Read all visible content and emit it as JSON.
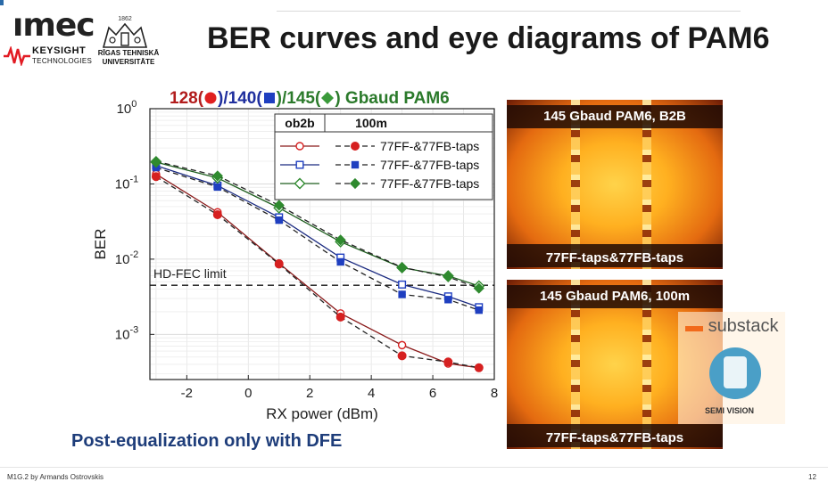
{
  "slide": {
    "title": "BER curves and eye diagrams of PAM6",
    "footer_left": "M1G.2 by Armands Ostrovskis",
    "page_number": "12",
    "subtitle_bottom": "Post-equalization only with DFE"
  },
  "logos": {
    "imec": "ımec",
    "keysight_line1": "KEYSIGHT",
    "keysight_line2": "TECHNOLOGIES",
    "rtu_year": "1862",
    "rtu_line1": "RĪGAS TEHNISKĀ",
    "rtu_line2": "UNIVERSITĀTE"
  },
  "chart_title": {
    "part1": "128(",
    "part2": ")/140(",
    "part3": ")/145(",
    "part4": ") Gbaud PAM6"
  },
  "eyes": [
    {
      "top_label": "145 Gbaud PAM6, B2B",
      "bottom_label": "77FF-taps&77FB-taps"
    },
    {
      "top_label": "145 Gbaud PAM6, 100m",
      "bottom_label": "77FF-taps&77FB-taps"
    }
  ],
  "watermark": {
    "substack": "substack",
    "semi_vision": "SEMI VISION"
  },
  "colors": {
    "red": "#d62020",
    "blue": "#1f3fc0",
    "green": "#2f8a2f",
    "dark_red": "#8a1a1a",
    "dark_blue": "#1a2a80",
    "dark_green": "#1e5e1e"
  },
  "chart_data": {
    "type": "line",
    "xlabel": "RX power (dBm)",
    "ylabel": "BER",
    "xlim": [
      -3.2,
      8
    ],
    "ylim_log10": [
      -3.6,
      0
    ],
    "y_scale": "log",
    "x_ticks": [
      -2,
      0,
      2,
      4,
      6,
      8
    ],
    "x_tick_labels": [
      "-2",
      "0",
      "2",
      "4",
      "6",
      "8"
    ],
    "y_ticks_log10": [
      0,
      -1,
      -2,
      -3
    ],
    "y_tick_base": "10",
    "y_tick_exps": [
      "0",
      "-1",
      "-2",
      "-3"
    ],
    "grid": true,
    "legend_position": "top-right",
    "legend_headers": [
      "ob2b",
      "100m"
    ],
    "legend_labels": [
      "77FF-&77FB-taps",
      "77FF-&77FB-taps",
      "77FF-&77FB-taps"
    ],
    "hd_fec": {
      "label": "HD-FEC limit",
      "value": 0.0045
    },
    "series": [
      {
        "group": "128",
        "variant": "b2b",
        "x": [
          -3,
          -1,
          1,
          3,
          5,
          6.5,
          7.5
        ],
        "y": [
          0.135,
          0.042,
          0.0088,
          0.0019,
          0.00072,
          0.00041,
          0.00036
        ]
      },
      {
        "group": "128",
        "variant": "100m",
        "x": [
          -3,
          -1,
          1,
          3,
          5,
          6.5,
          7.5
        ],
        "y": [
          0.125,
          0.039,
          0.0086,
          0.0017,
          0.00052,
          0.00043,
          0.00036
        ]
      },
      {
        "group": "140",
        "variant": "b2b",
        "x": [
          -3,
          -1,
          1,
          3,
          5,
          6.5,
          7.5
        ],
        "y": [
          0.175,
          0.095,
          0.036,
          0.0105,
          0.0046,
          0.0032,
          0.0023
        ]
      },
      {
        "group": "140",
        "variant": "100m",
        "x": [
          -3,
          -1,
          1,
          3,
          5,
          6.5,
          7.5
        ],
        "y": [
          0.165,
          0.091,
          0.033,
          0.0092,
          0.0034,
          0.0029,
          0.0021
        ]
      },
      {
        "group": "145",
        "variant": "b2b",
        "x": [
          -3,
          -1,
          1,
          3,
          5,
          6.5,
          7.5
        ],
        "y": [
          0.195,
          0.12,
          0.048,
          0.017,
          0.0077,
          0.006,
          0.0044
        ]
      },
      {
        "group": "145",
        "variant": "100m",
        "x": [
          -3,
          -1,
          1,
          3,
          5,
          6.5,
          7.5
        ],
        "y": [
          0.2,
          0.128,
          0.052,
          0.018,
          0.0078,
          0.0058,
          0.0041
        ]
      }
    ]
  }
}
